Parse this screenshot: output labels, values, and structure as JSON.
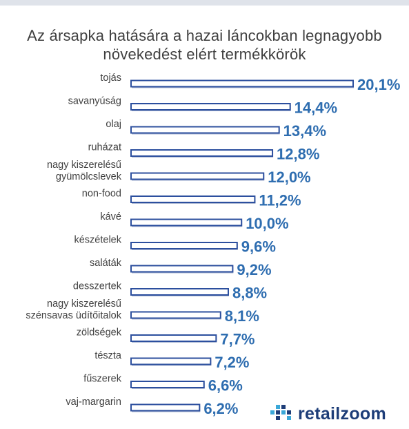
{
  "chart_data": {
    "type": "bar",
    "orientation": "horizontal",
    "title": "Az ársapka hatására a hazai láncokban legnagyobb növekedést elért termékkörök",
    "categories": [
      [
        "tojás"
      ],
      [
        "savanyúság"
      ],
      [
        "olaj"
      ],
      [
        "ruházat"
      ],
      [
        "nagy kiszerelésű",
        "gyümölcslevek"
      ],
      [
        "non-food"
      ],
      [
        "kávé"
      ],
      [
        "készételek"
      ],
      [
        "saláták"
      ],
      [
        "desszertek"
      ],
      [
        "nagy kiszerelésű",
        "szénsavas üdítőitalok"
      ],
      [
        "zöldségek"
      ],
      [
        "tészta"
      ],
      [
        "fűszerek"
      ],
      [
        "vaj-margarin"
      ]
    ],
    "values": [
      20.1,
      14.4,
      13.4,
      12.8,
      12.0,
      11.2,
      10.0,
      9.6,
      9.2,
      8.8,
      8.1,
      7.7,
      7.2,
      6.6,
      6.2
    ],
    "value_labels": [
      "20,1%",
      "14,4%",
      "13,4%",
      "12,8%",
      "12,0%",
      "11,2%",
      "10,0%",
      "9,6%",
      "9,2%",
      "8,8%",
      "8,1%",
      "7,7%",
      "7,2%",
      "6,6%",
      "6,2%"
    ],
    "unit": "%",
    "xlim": [
      0,
      20.1
    ],
    "grid": false,
    "legend": "none",
    "colors": {
      "bar_fill": "#ffffff",
      "bar_border": "#2c4f9e",
      "bar_shadow": "#aab6d2",
      "value_text": "#2e6db0",
      "category_text": "#404040",
      "title_text": "#3f3f3f"
    }
  },
  "branding": {
    "logo_text": "retailzoom",
    "logo_colors": {
      "primary": "#1d3d78",
      "accent": "#3aa8d8"
    }
  }
}
